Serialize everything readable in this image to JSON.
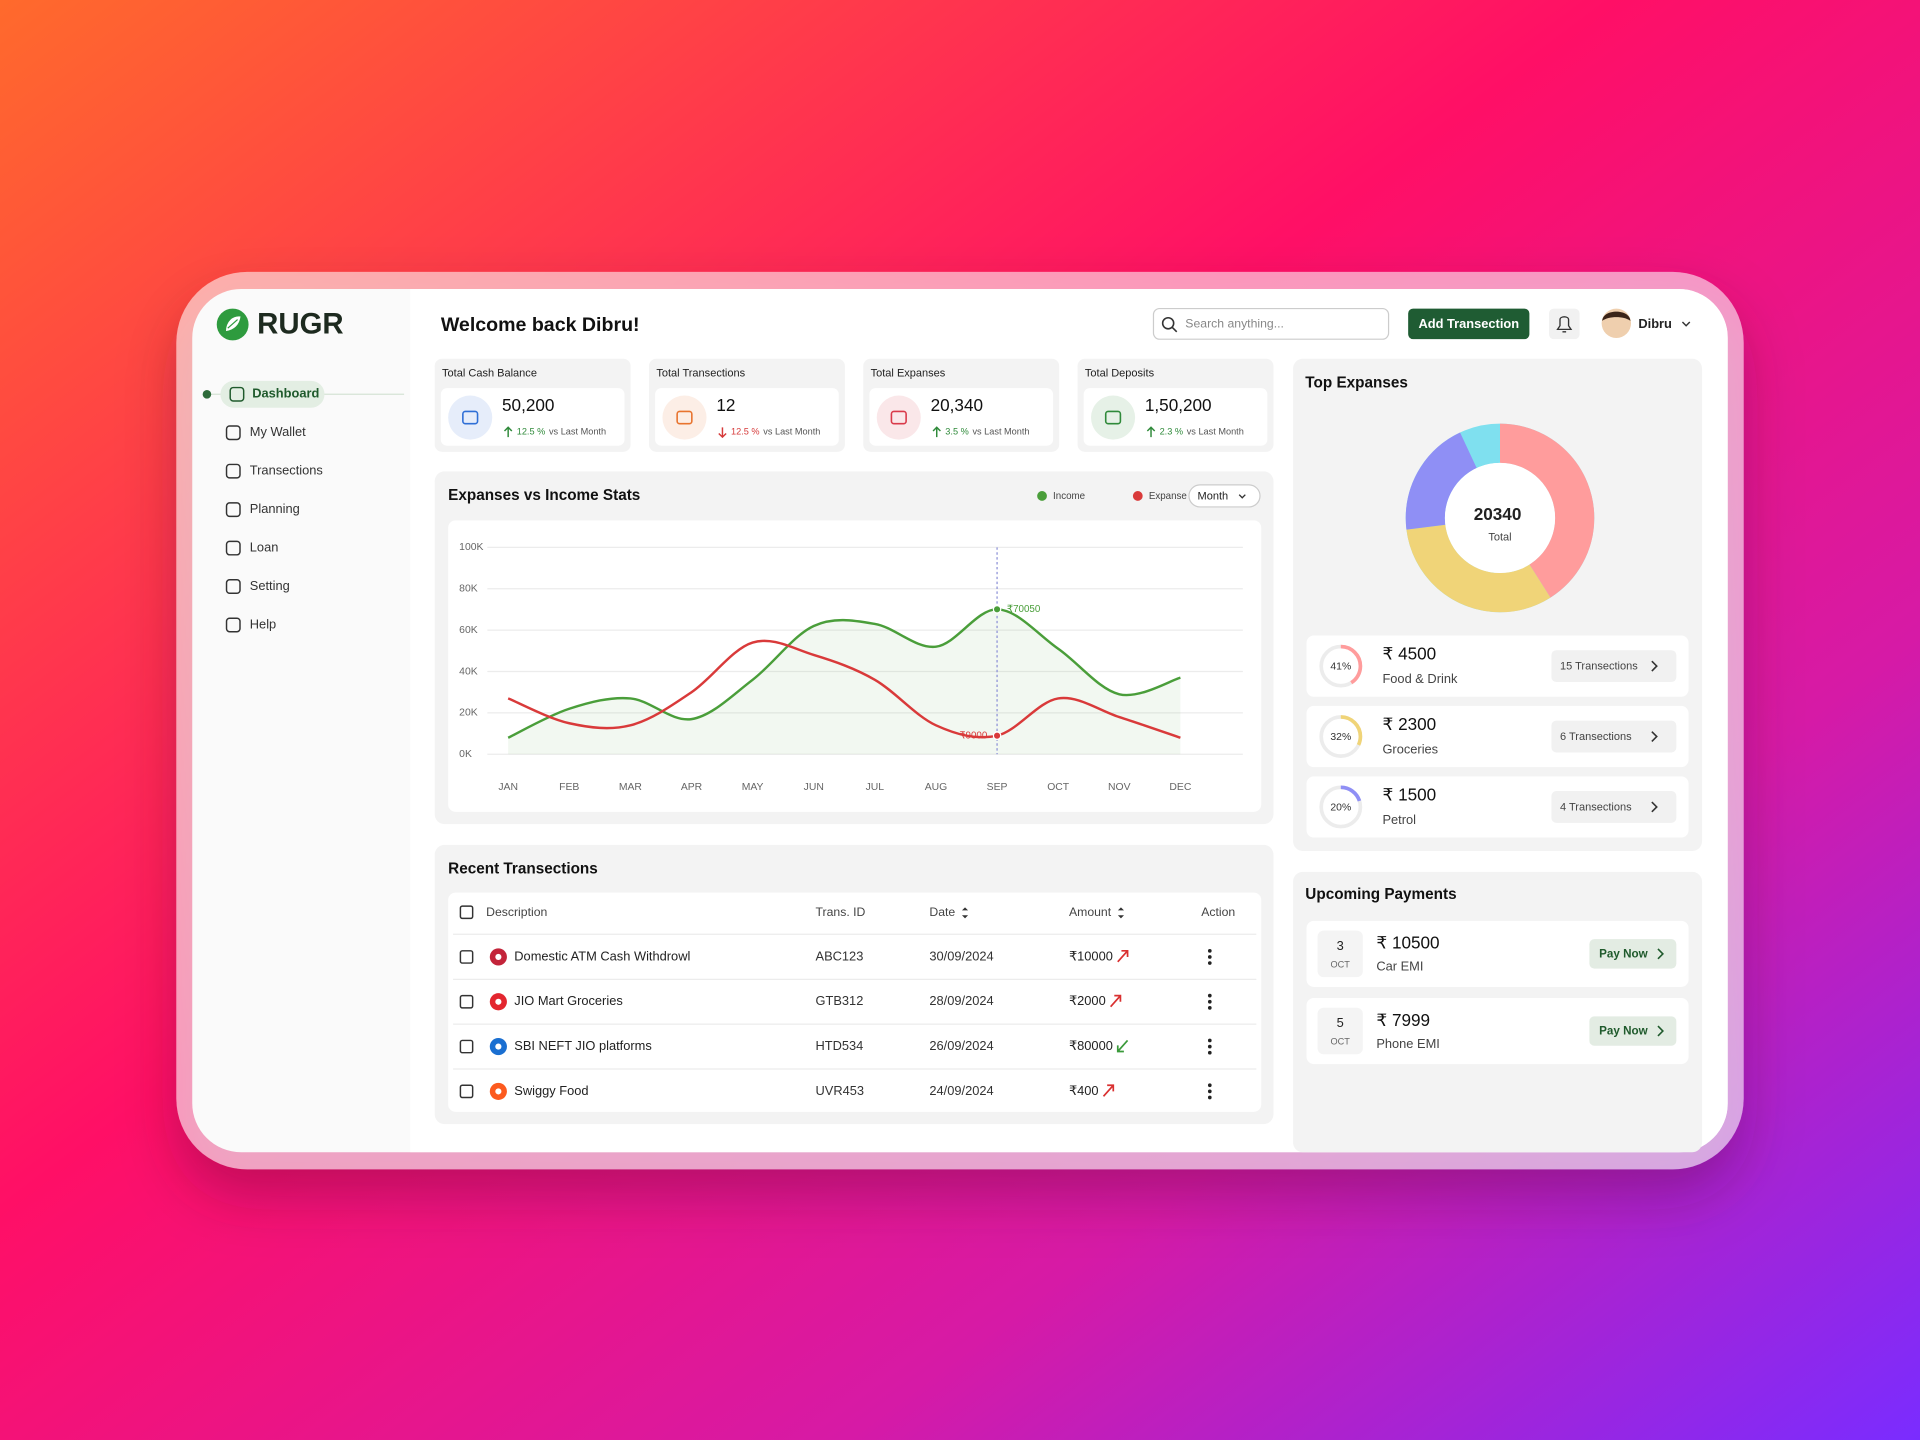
{
  "brand": {
    "name": "RUGR"
  },
  "nav": [
    {
      "label": "Dashboard",
      "active": true
    },
    {
      "label": "My Wallet",
      "active": false
    },
    {
      "label": "Transections",
      "active": false
    },
    {
      "label": "Planning",
      "active": false
    },
    {
      "label": "Loan",
      "active": false
    },
    {
      "label": "Setting",
      "active": false
    },
    {
      "label": "Help",
      "active": false
    }
  ],
  "header": {
    "welcome": "Welcome back Dibru!",
    "search_placeholder": "Search anything...",
    "add_button": "Add Transection",
    "user": "Dibru"
  },
  "stats": [
    {
      "title": "Total Cash Balance",
      "value": "50,200",
      "change": "12.5 %",
      "trend": "up",
      "note": "vs Last Month",
      "color": "#2f6fd6"
    },
    {
      "title": "Total Transections",
      "value": "12",
      "change": "12.5 %",
      "trend": "down",
      "note": "vs Last Month",
      "color": "#e8742f"
    },
    {
      "title": "Total Expanses",
      "value": "20,340",
      "change": "3.5 %",
      "trend": "up",
      "note": "vs Last Month",
      "color": "#d93a4a"
    },
    {
      "title": "Total Deposits",
      "value": "1,50,200",
      "change": "2.3 %",
      "trend": "up",
      "note": "vs Last Month",
      "color": "#2f8a3a"
    }
  ],
  "chart_data": {
    "type": "line",
    "title": "Expanses vs Income Stats",
    "dropdown": "Month",
    "legend": "top-right",
    "grid": true,
    "categories": [
      "JAN",
      "FEB",
      "MAR",
      "APR",
      "MAY",
      "JUN",
      "JUL",
      "AUG",
      "SEP",
      "OCT",
      "NOV",
      "DEC"
    ],
    "series": [
      {
        "name": "Income",
        "color": "#4a9e3a",
        "values": [
          8000,
          22000,
          27000,
          17000,
          36000,
          62000,
          63000,
          52000,
          70050,
          51000,
          29000,
          37000
        ],
        "value_labels": [
          null,
          null,
          null,
          null,
          null,
          null,
          null,
          null,
          "₹70050",
          null,
          null,
          null
        ]
      },
      {
        "name": "Expanse",
        "color": "#d93a3a",
        "values": [
          27000,
          15000,
          14000,
          30000,
          54000,
          48000,
          36000,
          14000,
          9000,
          27000,
          18000,
          8000
        ],
        "value_labels": [
          null,
          null,
          null,
          null,
          null,
          null,
          null,
          null,
          "₹9000",
          null,
          null,
          null
        ]
      }
    ],
    "ylim": [
      0,
      100000
    ],
    "yticks": [
      {
        "value": 0,
        "label": "0K"
      },
      {
        "value": 20000,
        "label": "20K"
      },
      {
        "value": 40000,
        "label": "40K"
      },
      {
        "value": 60000,
        "label": "60K"
      },
      {
        "value": 80000,
        "label": "80K"
      },
      {
        "value": 100000,
        "label": "100K"
      }
    ]
  },
  "transactions": {
    "title": "Recent Transections",
    "columns": [
      "Description",
      "Trans. ID",
      "Date",
      "Amount",
      "Action"
    ],
    "sortable": [
      false,
      false,
      true,
      true,
      false
    ],
    "rows": [
      {
        "description": "Domestic ATM Cash Withdrowl",
        "id": "ABC123",
        "date": "30/09/2024",
        "amount": "₹10000",
        "direction": "out",
        "color": "#c3243a"
      },
      {
        "description": "JIO Mart Groceries",
        "id": "GTB312",
        "date": "28/09/2024",
        "amount": "₹2000",
        "direction": "out",
        "color": "#e3262f"
      },
      {
        "description": "SBI NEFT JIO platforms",
        "id": "HTD534",
        "date": "26/09/2024",
        "amount": "₹80000",
        "direction": "in",
        "color": "#1a6fd1"
      },
      {
        "description": "Swiggy Food",
        "id": "UVR453",
        "date": "24/09/2024",
        "amount": "₹400",
        "direction": "out",
        "color": "#fc5a1e"
      }
    ]
  },
  "top_expenses": {
    "title": "Top Expanses",
    "total": "20340",
    "total_label": "Total",
    "other_color": "#7fe0ef",
    "items": [
      {
        "amount": "₹ 4500",
        "label": "Food & Drink",
        "percent": 41,
        "percent_label": "41%",
        "count": "15 Transections",
        "color": "#ff9c9c"
      },
      {
        "amount": "₹ 2300",
        "label": "Groceries",
        "percent": 32,
        "percent_label": "32%",
        "count": "6 Transections",
        "color": "#f0d478"
      },
      {
        "amount": "₹ 1500",
        "label": "Petrol",
        "percent": 20,
        "percent_label": "20%",
        "count": "4 Transections",
        "color": "#8f8ff5"
      }
    ]
  },
  "upcoming": {
    "title": "Upcoming Payments",
    "items": [
      {
        "day": "3",
        "month": "OCT",
        "amount": "₹ 10500",
        "label": "Car EMI",
        "button": "Pay Now"
      },
      {
        "day": "5",
        "month": "OCT",
        "amount": "₹ 7999",
        "label": "Phone EMI",
        "button": "Pay Now"
      }
    ]
  }
}
